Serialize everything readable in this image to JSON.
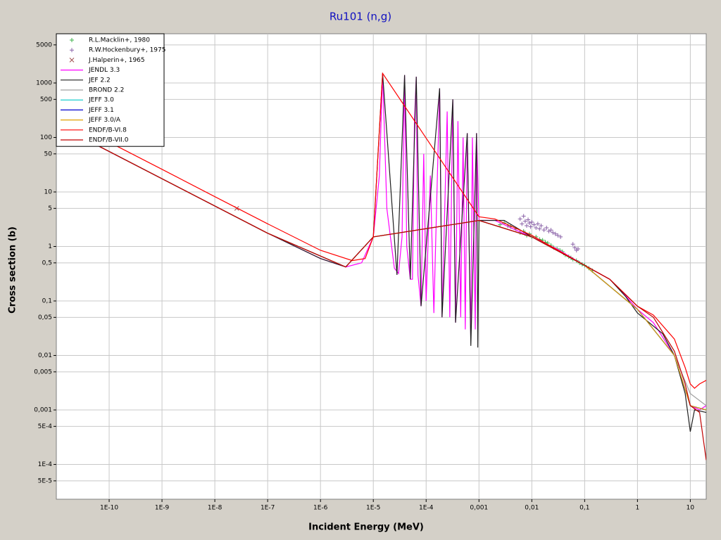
{
  "chart_data": {
    "type": "line",
    "title": "Ru101 (n,g)",
    "x_label": "Incident Energy (MeV)",
    "y_label": "Cross section (b)",
    "log_x": true,
    "log_y": true,
    "grid": true,
    "legend": "upper left",
    "xlim": [
      1e-11,
      20
    ],
    "ylim": [
      2.3e-05,
      8000
    ],
    "xticks": [
      {
        "value": 1e-10,
        "label": "1E-10"
      },
      {
        "value": 1e-09,
        "label": "1E-9"
      },
      {
        "value": 1e-08,
        "label": "1E-8"
      },
      {
        "value": 1e-07,
        "label": "1E-7"
      },
      {
        "value": 1e-06,
        "label": "1E-6"
      },
      {
        "value": 1e-05,
        "label": "1E-5"
      },
      {
        "value": 0.0001,
        "label": "1E-4"
      },
      {
        "value": 0.001,
        "label": "0,001"
      },
      {
        "value": 0.01,
        "label": "0,01"
      },
      {
        "value": 0.1,
        "label": "0,1"
      },
      1,
      10
    ],
    "yticks": [
      5000,
      1000,
      500,
      100,
      50,
      10,
      5,
      1,
      {
        "value": 0.5,
        "label": "0,5"
      },
      {
        "value": 0.1,
        "label": "0,1"
      },
      {
        "value": 0.05,
        "label": "0,05"
      },
      {
        "value": 0.01,
        "label": "0,01"
      },
      {
        "value": 0.005,
        "label": "0,005"
      },
      {
        "value": 0.001,
        "label": "0,001"
      },
      {
        "value": 0.0005,
        "label": "5E-4"
      },
      {
        "value": 0.0001,
        "label": "1E-4"
      },
      {
        "value": 5e-05,
        "label": "5E-5"
      }
    ],
    "series": [
      {
        "name": "R.L.Macklin+, 1980",
        "kind": "scatter",
        "marker": "plus",
        "color": "#3cb04a",
        "x": [
          0.0025,
          0.003,
          0.0035,
          0.004,
          0.005,
          0.006,
          0.007,
          0.008,
          0.009,
          0.01,
          0.012,
          0.014,
          0.016,
          0.018,
          0.02,
          0.023,
          0.026,
          0.03,
          0.034,
          0.038,
          0.043,
          0.05,
          0.055,
          0.06,
          0.07,
          0.08,
          0.09,
          0.1,
          0.12,
          0.14
        ],
        "values": [
          2.5,
          2.7,
          2.4,
          2.3,
          2.1,
          1.8,
          1.9,
          1.6,
          1.7,
          1.5,
          1.5,
          1.35,
          1.3,
          1.2,
          1.15,
          1.05,
          0.95,
          0.9,
          0.85,
          0.8,
          0.7,
          0.65,
          0.62,
          0.58,
          0.55,
          0.5,
          0.47,
          0.45,
          0.4,
          0.36
        ]
      },
      {
        "name": "R.W.Hockenbury+, 1975",
        "kind": "scatter",
        "marker": "plus",
        "color": "#8a62a8",
        "x": [
          0.006,
          0.0065,
          0.007,
          0.0075,
          0.008,
          0.0085,
          0.009,
          0.0095,
          0.01,
          0.011,
          0.012,
          0.013,
          0.014,
          0.015,
          0.017,
          0.019,
          0.021,
          0.023,
          0.025,
          0.028,
          0.031,
          0.035,
          0.06,
          0.065,
          0.07,
          0.075
        ],
        "values": [
          3.2,
          2.6,
          3.6,
          2.9,
          2.4,
          3.1,
          2.7,
          2.3,
          2.8,
          2.5,
          2.2,
          2.6,
          2.1,
          2.4,
          2.0,
          2.2,
          1.9,
          2.0,
          1.8,
          1.7,
          1.6,
          1.5,
          1.1,
          0.95,
          0.85,
          0.9
        ]
      },
      {
        "name": "J.Halperin+, 1965",
        "kind": "scatter",
        "marker": "x",
        "color": "#a05050",
        "x": [
          2.6e-08
        ],
        "values": [
          5
        ]
      },
      {
        "name": "JENDL 3.3",
        "kind": "line",
        "color": "#ff00ff",
        "x": [
          1e-11,
          1e-10,
          1e-09,
          1e-08,
          1e-07,
          1e-06,
          3e-06,
          6e-06,
          1e-05,
          1.3e-05,
          1.5e-05,
          1.8e-05,
          2.5e-05,
          3e-05,
          3.5e-05,
          3.9e-05,
          4.3e-05,
          5e-05,
          5.5e-05,
          6e-05,
          6.5e-05,
          7e-05,
          8e-05,
          9e-05,
          0.0001,
          0.00012,
          0.00014,
          0.00018,
          0.0002,
          0.00025,
          0.00028,
          0.00032,
          0.00036,
          0.0004,
          0.00045,
          0.0005,
          0.00055,
          0.0006,
          0.0007,
          0.00075,
          0.00085,
          0.0009,
          0.001,
          0.002,
          0.005,
          0.01,
          0.03,
          0.1,
          0.3,
          0.5,
          1,
          2,
          5,
          10,
          15,
          20
        ],
        "values": [
          175,
          55,
          17.5,
          5.5,
          1.75,
          0.6,
          0.42,
          0.5,
          1.5,
          20,
          1500,
          5,
          0.4,
          0.32,
          1.5,
          1400,
          1,
          0.25,
          0.25,
          200,
          1300,
          0.3,
          0.08,
          50,
          0.1,
          20,
          0.06,
          800,
          0.05,
          300,
          0.05,
          500,
          0.04,
          200,
          0.05,
          100,
          0.03,
          120,
          0.02,
          100,
          0.03,
          120,
          3,
          3,
          2,
          1.5,
          0.9,
          0.45,
          0.25,
          0.15,
          0.07,
          0.04,
          0.01,
          0.0012,
          0.001,
          0.0012
        ]
      },
      {
        "name": "JEF 2.2",
        "kind": "line",
        "color": "#202020",
        "x": [
          1e-11,
          1e-09,
          1e-07,
          1e-06,
          3e-06,
          1e-05,
          1.5e-05,
          2.8e-05,
          3.9e-05,
          5e-05,
          6.5e-05,
          8e-05,
          0.00018,
          0.0002,
          0.00032,
          0.00036,
          0.0006,
          0.0007,
          0.0009,
          0.00095,
          0.001,
          0.003,
          0.01,
          0.1,
          0.3,
          0.6,
          1,
          3,
          5,
          8,
          10,
          12,
          20
        ],
        "values": [
          175,
          17.5,
          1.75,
          0.6,
          0.42,
          1.5,
          1500,
          0.3,
          1400,
          0.25,
          1300,
          0.08,
          800,
          0.05,
          500,
          0.04,
          120,
          0.015,
          120,
          0.014,
          3,
          3,
          1.5,
          0.45,
          0.25,
          0.12,
          0.06,
          0.025,
          0.01,
          0.002,
          0.0004,
          0.001,
          0.0009
        ]
      },
      {
        "name": "BROND 2.2",
        "kind": "line",
        "color": "#a0a0a0",
        "x": [
          1e-11,
          1e-07,
          3e-06,
          1e-05,
          0.001,
          0.01,
          0.1,
          1,
          5,
          10,
          20
        ],
        "values": [
          175,
          1.75,
          0.42,
          1.5,
          3,
          1.5,
          0.45,
          0.07,
          0.01,
          0.002,
          0.0012
        ]
      },
      {
        "name": "JEFF 3.0",
        "kind": "line",
        "color": "#00c8c8",
        "x": [
          1e-11,
          1e-07,
          3e-06,
          1e-05,
          0.001,
          0.01,
          0.1,
          1,
          5,
          10,
          20
        ],
        "values": [
          175,
          1.75,
          0.42,
          1.5,
          3,
          1.5,
          0.45,
          0.07,
          0.01,
          0.0012,
          0.001
        ]
      },
      {
        "name": "JEFF 3.1",
        "kind": "line",
        "color": "#0000d0",
        "x": [
          1e-11,
          1e-07,
          3e-06,
          1e-05,
          0.001,
          0.01,
          0.1,
          1,
          5,
          10,
          20
        ],
        "values": [
          175,
          1.75,
          0.42,
          1.5,
          3,
          1.5,
          0.45,
          0.07,
          0.01,
          0.0012,
          0.001
        ]
      },
      {
        "name": "JEFF 3.0/A",
        "kind": "line",
        "color": "#e0a000",
        "x": [
          1e-11,
          1e-07,
          3e-06,
          1e-05,
          0.001,
          0.01,
          0.1,
          1,
          5,
          10,
          20
        ],
        "values": [
          175,
          1.75,
          0.42,
          1.5,
          3,
          1.5,
          0.45,
          0.07,
          0.01,
          0.0012,
          0.001
        ]
      },
      {
        "name": "ENDF/B-VI.8",
        "kind": "line",
        "color": "#ff0000",
        "x": [
          1e-11,
          1e-10,
          1e-09,
          1e-08,
          1e-07,
          1e-06,
          4e-06,
          7e-06,
          1e-05,
          1.5e-05,
          0.001,
          0.002,
          0.01,
          0.1,
          0.3,
          1,
          2,
          5,
          8,
          10,
          12,
          15,
          20
        ],
        "values": [
          260,
          82,
          26,
          8.2,
          2.6,
          0.85,
          0.55,
          0.6,
          1.5,
          1500,
          3.5,
          3.2,
          1.6,
          0.45,
          0.25,
          0.08,
          0.055,
          0.02,
          0.006,
          0.003,
          0.0025,
          0.003,
          0.0035
        ]
      },
      {
        "name": "ENDF/B-VII.0",
        "kind": "line",
        "color": "#c00000",
        "x": [
          1e-11,
          1e-07,
          3e-06,
          1e-05,
          0.001,
          0.01,
          0.1,
          0.3,
          1,
          2,
          5,
          8,
          10,
          15,
          20
        ],
        "values": [
          175,
          1.75,
          0.42,
          1.5,
          3,
          1.5,
          0.45,
          0.25,
          0.08,
          0.05,
          0.012,
          0.003,
          0.0012,
          0.0009,
          0.00012
        ]
      }
    ]
  }
}
